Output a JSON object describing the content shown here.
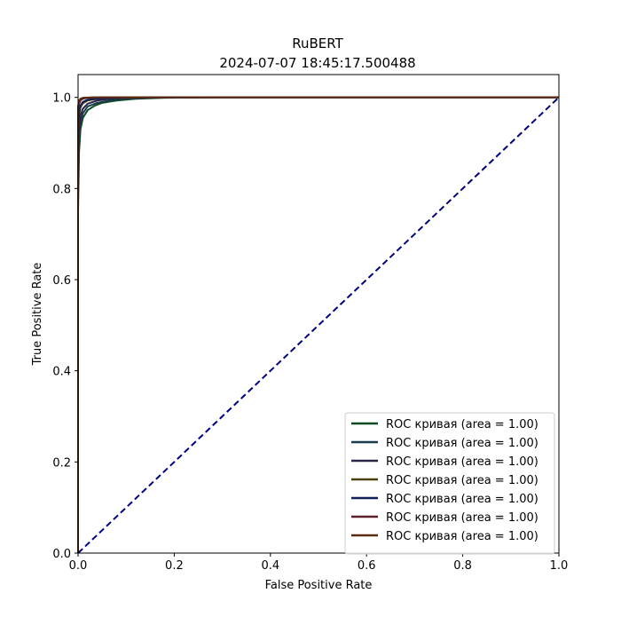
{
  "chart_data": {
    "type": "line",
    "title": "RuBERT",
    "subtitle": "2024-07-07 18:45:17.500488",
    "xlabel": "False Positive Rate",
    "ylabel": "True Positive Rate",
    "xlim": [
      0.0,
      1.0
    ],
    "ylim": [
      0.0,
      1.05
    ],
    "xticks": [
      "0.0",
      "0.2",
      "0.4",
      "0.6",
      "0.8",
      "1.0"
    ],
    "yticks": [
      "0.0",
      "0.2",
      "0.4",
      "0.6",
      "0.8",
      "1.0"
    ],
    "grid": false,
    "legend_position": "lower-right",
    "series": [
      {
        "name": "ROC кривая (area = 1.00)",
        "color": "#0b4a1e",
        "x": [
          0.0,
          0.0,
          0.002,
          0.005,
          0.01,
          0.02,
          0.035,
          0.05,
          0.08,
          0.12,
          0.18,
          0.3,
          0.5,
          1.0
        ],
        "y": [
          0.0,
          0.75,
          0.88,
          0.93,
          0.955,
          0.972,
          0.982,
          0.988,
          0.993,
          0.997,
          0.999,
          1.0,
          1.0,
          1.0
        ]
      },
      {
        "name": "ROC кривая (area = 1.00)",
        "color": "#183c4a",
        "x": [
          0.0,
          0.0,
          0.002,
          0.005,
          0.01,
          0.02,
          0.04,
          0.07,
          0.1,
          0.15,
          0.3,
          1.0
        ],
        "y": [
          0.0,
          0.8,
          0.9,
          0.945,
          0.965,
          0.98,
          0.988,
          0.994,
          0.997,
          0.999,
          1.0,
          1.0
        ]
      },
      {
        "name": "ROC кривая (area = 1.00)",
        "color": "#2c2448",
        "x": [
          0.0,
          0.0,
          0.002,
          0.005,
          0.01,
          0.02,
          0.04,
          0.06,
          0.1,
          0.2,
          1.0
        ],
        "y": [
          0.0,
          0.85,
          0.93,
          0.96,
          0.975,
          0.986,
          0.993,
          0.996,
          0.999,
          1.0,
          1.0
        ]
      },
      {
        "name": "ROC кривая (area = 1.00)",
        "color": "#4a420a",
        "x": [
          0.0,
          0.0,
          0.002,
          0.005,
          0.01,
          0.02,
          0.04,
          0.08,
          0.15,
          1.0
        ],
        "y": [
          0.0,
          0.9,
          0.96,
          0.978,
          0.987,
          0.993,
          0.997,
          0.999,
          1.0,
          1.0
        ]
      },
      {
        "name": "ROC кривая (area = 1.00)",
        "color": "#0e1f5a",
        "x": [
          0.0,
          0.0,
          0.002,
          0.005,
          0.01,
          0.02,
          0.05,
          0.1,
          1.0
        ],
        "y": [
          0.0,
          0.92,
          0.965,
          0.982,
          0.99,
          0.995,
          0.998,
          1.0,
          1.0
        ]
      },
      {
        "name": "ROC кривая (area = 1.00)",
        "color": "#5a1f2a",
        "x": [
          0.0,
          0.0,
          0.002,
          0.005,
          0.01,
          0.02,
          0.05,
          1.0
        ],
        "y": [
          0.0,
          0.96,
          0.985,
          0.993,
          0.997,
          0.999,
          1.0,
          1.0
        ]
      },
      {
        "name": "ROC кривая (area = 1.00)",
        "color": "#5a2a12",
        "x": [
          0.0,
          0.0,
          0.002,
          0.005,
          0.01,
          0.03,
          1.0
        ],
        "y": [
          0.0,
          0.98,
          0.993,
          0.997,
          0.999,
          1.0,
          1.0
        ]
      }
    ],
    "diagonal": {
      "color": "#000080",
      "style": "dashed",
      "x": [
        0.0,
        1.0
      ],
      "y": [
        0.0,
        1.0
      ]
    }
  }
}
